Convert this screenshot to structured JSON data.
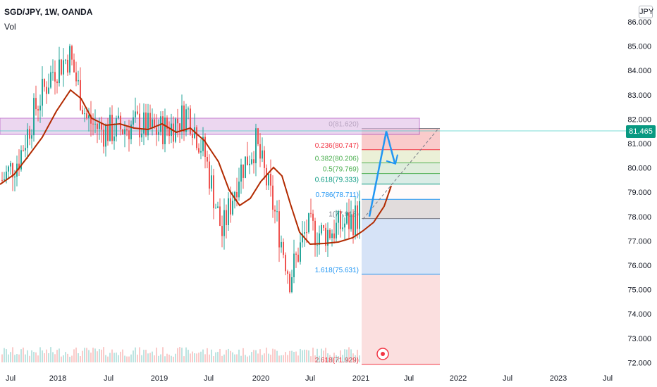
{
  "header": {
    "symbol_line": "SGD/JPY, 1W, OANDA",
    "indicator": "Vol",
    "currency": "JPY"
  },
  "price_axis": {
    "current_price_label": "81.465",
    "current_price_color": "#089981",
    "ticks": [
      "86.000",
      "85.000",
      "84.000",
      "83.000",
      "82.000",
      "81.000",
      "80.000",
      "79.000",
      "78.000",
      "77.000",
      "76.000",
      "75.000",
      "74.000",
      "73.000",
      "72.000"
    ]
  },
  "time_axis": {
    "labels": [
      "Jul",
      "2018",
      "Jul",
      "2019",
      "Jul",
      "2020",
      "Jul",
      "2021",
      "Jul",
      "2022",
      "Jul",
      "2023",
      "Jul"
    ]
  },
  "fib_levels": [
    {
      "label": "0(81.620)",
      "color": "#787b86"
    },
    {
      "label": "0.236(80.747)",
      "color": "#f23645"
    },
    {
      "label": "0.382(80.206)",
      "color": "#4caf50"
    },
    {
      "label": "0.5(79.769)",
      "color": "#4caf50"
    },
    {
      "label": "0.618(79.333)",
      "color": "#089981"
    },
    {
      "label": "0.786(78.711)",
      "color": "#2196f3"
    },
    {
      "label": "1(77.918)",
      "color": "#787b86"
    },
    {
      "label": "1.618(75.631)",
      "color": "#2196f3"
    },
    {
      "label": "2.618(71.929)",
      "color": "#f23645"
    }
  ],
  "colors": {
    "up": "#26a69a",
    "down": "#ef5350",
    "ma": "#b22a00",
    "zone": "#9c27b0",
    "projection": "#2196f3"
  },
  "chart_data": {
    "type": "candlestick",
    "ylim": [
      72.0,
      86.0
    ],
    "series": [
      {
        "name": "",
        "x": [
          "2017-06",
          "2017-08",
          "2017-10",
          "2017-12",
          "2018-02",
          "2018-04",
          "2018-06",
          "2018-08",
          "2018-10",
          "2018-12",
          "2019-02",
          "2019-04",
          "2019-06",
          "2019-08",
          "2019-10",
          "2019-12",
          "2020-02",
          "2020-04",
          "2020-06",
          "2020-08",
          "2020-10",
          "2020-12",
          "2021-01",
          "2021-02",
          "2021-03"
        ],
        "values": [
          79.5,
          80.4,
          82.5,
          84.0,
          84.6,
          82.0,
          81.5,
          81.6,
          81.8,
          81.5,
          81.7,
          82.3,
          80.5,
          77.3,
          79.8,
          81.0,
          78.5,
          75.5,
          77.5,
          77.3,
          77.6,
          78.0,
          79.0,
          81.5,
          80.6
        ]
      }
    ],
    "price_projection": [
      {
        "x": "2021-01",
        "y": 78.0
      },
      {
        "x": "2021-03",
        "y": 81.5
      },
      {
        "x": "2021-04",
        "y": 80.2
      }
    ]
  }
}
